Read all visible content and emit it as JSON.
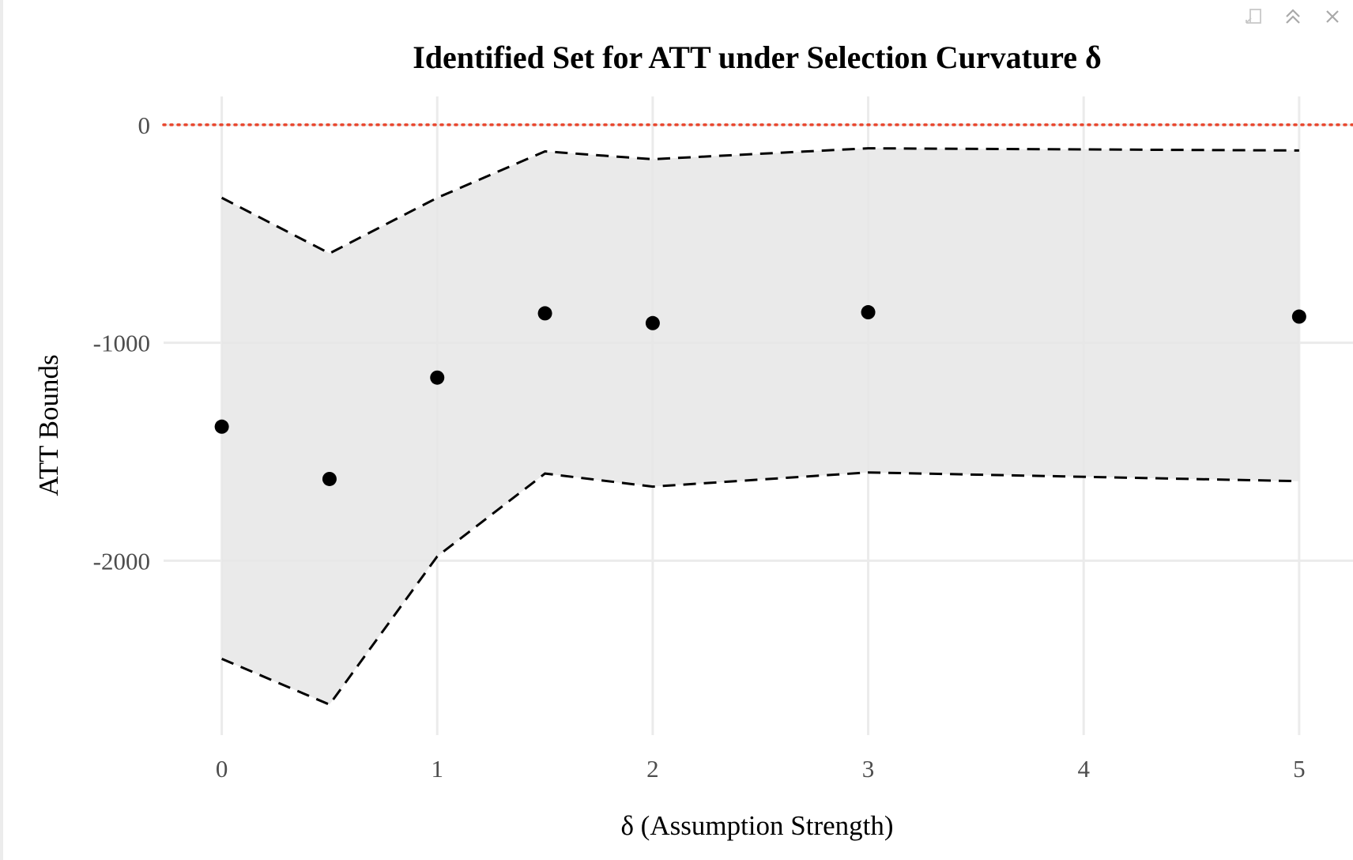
{
  "window": {
    "toolbar": [
      {
        "name": "export-icon"
      },
      {
        "name": "collapse-icon"
      },
      {
        "name": "close-icon"
      }
    ]
  },
  "chart_data": {
    "type": "area",
    "title": "Identified Set for ATT under Selection Curvature δ",
    "xlabel": "δ (Assumption Strength)",
    "ylabel": "ATT Bounds",
    "x": [
      0,
      0.5,
      1,
      1.5,
      2,
      3,
      5
    ],
    "xticks": [
      0,
      1,
      2,
      3,
      4,
      5
    ],
    "xtick_labels": [
      "0",
      "1",
      "2",
      "3",
      "4",
      "5"
    ],
    "yticks": [
      0,
      -1000,
      -2000
    ],
    "ytick_labels": [
      "0",
      "-1000",
      "-2000"
    ],
    "xlim": [
      -0.27,
      5.25
    ],
    "ylim": [
      -2800,
      130
    ],
    "grid": true,
    "series": [
      {
        "role": "upper",
        "style": "dashed",
        "color": "#000000",
        "values": [
          -335,
          -590,
          -335,
          -122,
          -158,
          -108,
          -118
        ]
      },
      {
        "role": "lower",
        "style": "dashed",
        "color": "#000000",
        "values": [
          -2450,
          -2660,
          -1980,
          -1600,
          -1660,
          -1595,
          -1635
        ]
      },
      {
        "role": "point",
        "style": "points",
        "color": "#000000",
        "values": [
          -1385,
          -1625,
          -1160,
          -865,
          -910,
          -860,
          -880
        ]
      }
    ],
    "reference_line": {
      "y": 0,
      "style": "dotted",
      "color": "#e8452c"
    },
    "fill_color": "#e6e6e6",
    "grid_color": "#ebebeb"
  }
}
